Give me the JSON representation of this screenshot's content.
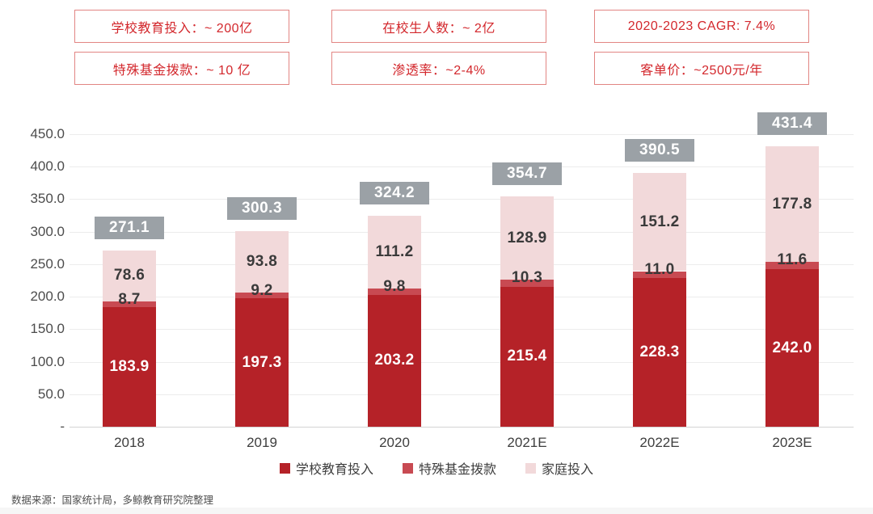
{
  "stat_boxes": [
    {
      "text": "学校教育投入：~ 200亿"
    },
    {
      "text": "特殊基金拨款：~ 10 亿"
    },
    {
      "text": "在校生人数：~ 2亿"
    },
    {
      "text": "渗透率：~2-4%"
    },
    {
      "text": "2020-2023 CAGR: 7.4%"
    },
    {
      "text": "客单价：~2500元/年"
    }
  ],
  "chart_data": {
    "type": "bar",
    "stacked": true,
    "categories": [
      "2018",
      "2019",
      "2020",
      "2021E",
      "2022E",
      "2023E"
    ],
    "series": [
      {
        "name": "学校教育投入",
        "color": "#b52228",
        "label_color": "white",
        "values": [
          183.9,
          197.3,
          203.2,
          215.4,
          228.3,
          242.0
        ]
      },
      {
        "name": "特殊基金拨款",
        "color": "#c84a52",
        "label_color": "dark",
        "values": [
          8.7,
          9.2,
          9.8,
          10.3,
          11.0,
          11.6
        ]
      },
      {
        "name": "家庭投入",
        "color": "#f2d9da",
        "label_color": "dark",
        "values": [
          78.6,
          93.8,
          111.2,
          128.9,
          151.2,
          177.8
        ]
      }
    ],
    "totals": [
      271.1,
      300.3,
      324.2,
      354.7,
      390.5,
      431.4
    ],
    "total_label_bg": "#9ba1a6",
    "y_ticks": [
      {
        "label": "450.0",
        "value": 450
      },
      {
        "label": "400.0",
        "value": 400
      },
      {
        "label": "350.0",
        "value": 350
      },
      {
        "label": "300.0",
        "value": 300
      },
      {
        "label": "250.0",
        "value": 250
      },
      {
        "label": "200.0",
        "value": 200
      },
      {
        "label": "150.0",
        "value": 150
      },
      {
        "label": "100.0",
        "value": 100
      },
      {
        "label": "50.0",
        "value": 50
      },
      {
        "label": "-",
        "value": 0
      }
    ],
    "ylim": [
      0,
      450
    ],
    "grid": true,
    "legend_position": "bottom",
    "title": "",
    "xlabel": "",
    "ylabel": ""
  },
  "source_note": "数据来源：国家统计局，多鲸教育研究院整理",
  "colors": {
    "stat_border": "#e28583",
    "stat_text": "#d3282d",
    "total_box_bg": "#9ba1a6",
    "axis_text": "#4c4c4c",
    "gridline": "#ececec"
  }
}
